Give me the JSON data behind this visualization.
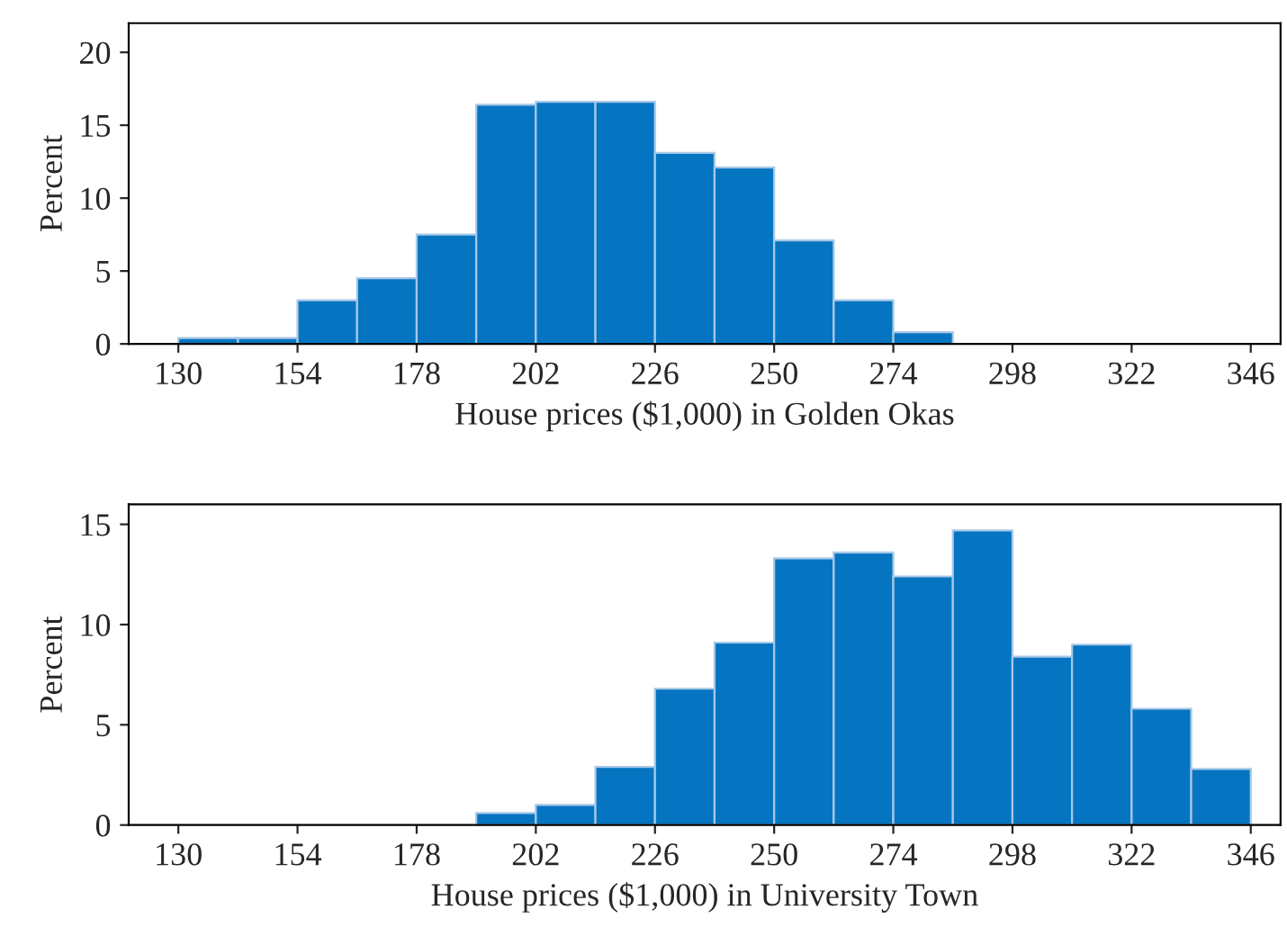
{
  "chart_data": [
    {
      "type": "histogram",
      "xlabel": "House prices ($1,000) in Golden Okas",
      "ylabel": "Percent",
      "bins": [
        130,
        142,
        154,
        166,
        178,
        190,
        202,
        214,
        226,
        238,
        250,
        262,
        274,
        286,
        298,
        310,
        322,
        334,
        346
      ],
      "values": [
        0.4,
        0.4,
        3.0,
        4.5,
        7.5,
        16.4,
        16.6,
        16.6,
        13.1,
        12.1,
        7.1,
        3.0,
        0.8,
        0,
        0,
        0,
        0,
        0
      ],
      "color": "#0575c1",
      "xlim": [
        120,
        352
      ],
      "xticks": [
        130,
        154,
        178,
        202,
        226,
        250,
        274,
        298,
        322,
        346
      ],
      "ylim": [
        0,
        22
      ],
      "yticks": [
        0,
        5,
        10,
        15,
        20
      ]
    },
    {
      "type": "histogram",
      "xlabel": "House prices ($1,000) in University Town",
      "ylabel": "Percent",
      "bins": [
        130,
        142,
        154,
        166,
        178,
        190,
        202,
        214,
        226,
        238,
        250,
        262,
        274,
        286,
        298,
        310,
        322,
        334,
        346
      ],
      "values": [
        0,
        0,
        0,
        0,
        0,
        0.6,
        1.0,
        2.9,
        6.8,
        9.1,
        13.3,
        13.6,
        12.4,
        14.7,
        8.4,
        9.0,
        5.8,
        2.8
      ],
      "color": "#0575c1",
      "xlim": [
        120,
        352
      ],
      "xticks": [
        130,
        154,
        178,
        202,
        226,
        250,
        274,
        298,
        322,
        346
      ],
      "ylim": [
        0,
        16
      ],
      "yticks": [
        0,
        5,
        10,
        15
      ]
    }
  ]
}
